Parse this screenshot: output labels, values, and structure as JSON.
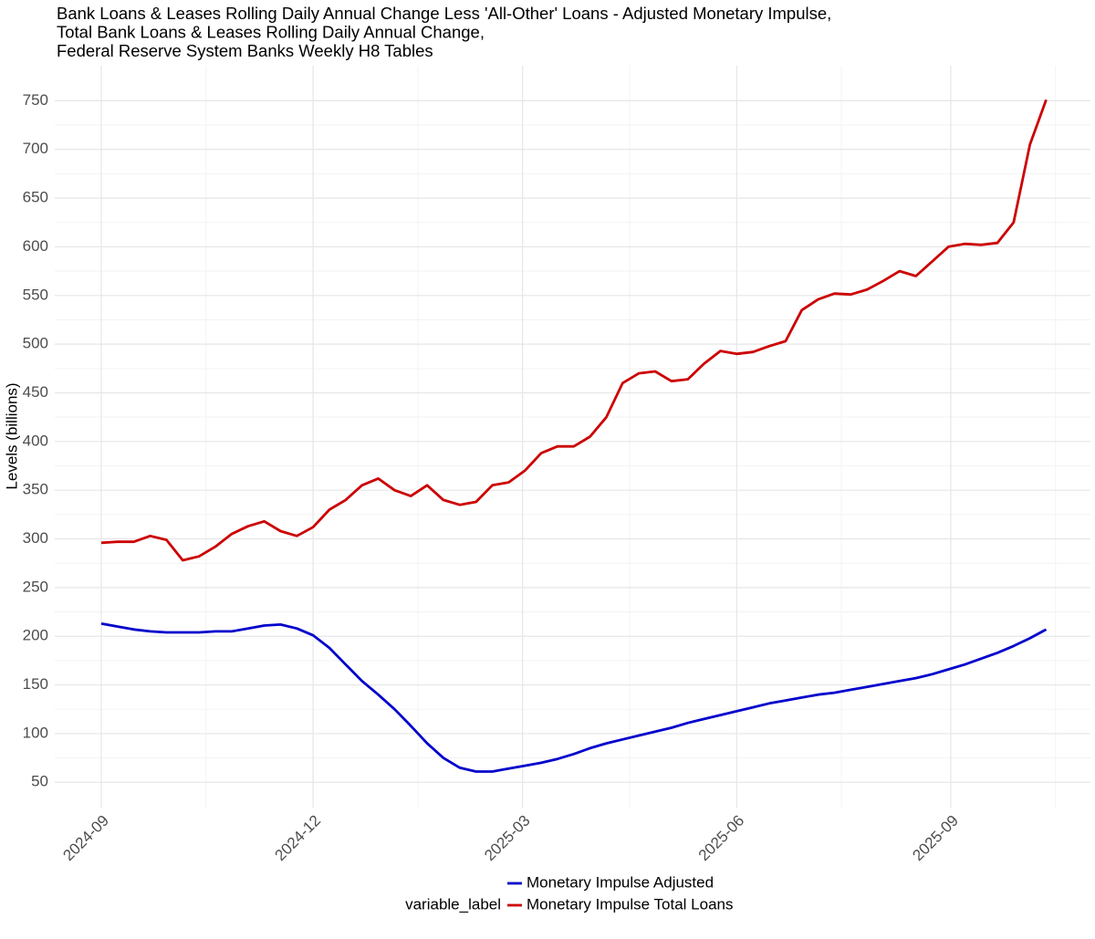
{
  "chart_data": {
    "type": "line",
    "title": [
      "Bank Loans & Leases Rolling Daily Annual Change Less 'All-Other' Loans - Adjusted Monetary Impulse,",
      "Total Bank Loans & Leases Rolling Daily Annual Change,",
      "Federal Reserve System Banks Weekly H8 Tables"
    ],
    "y_label": "Levels (billions)",
    "legend_title": "variable_label",
    "x": [
      "2024-09-01",
      "2024-09-08",
      "2024-09-15",
      "2024-09-22",
      "2024-09-29",
      "2024-10-06",
      "2024-10-13",
      "2024-10-20",
      "2024-10-27",
      "2024-11-03",
      "2024-11-10",
      "2024-11-17",
      "2024-11-24",
      "2024-12-01",
      "2024-12-08",
      "2024-12-15",
      "2024-12-22",
      "2024-12-29",
      "2025-01-05",
      "2025-01-12",
      "2025-01-19",
      "2025-01-26",
      "2025-02-02",
      "2025-02-09",
      "2025-02-16",
      "2025-02-23",
      "2025-03-02",
      "2025-03-09",
      "2025-03-16",
      "2025-03-23",
      "2025-03-30",
      "2025-04-06",
      "2025-04-13",
      "2025-04-20",
      "2025-04-27",
      "2025-05-04",
      "2025-05-11",
      "2025-05-18",
      "2025-05-25",
      "2025-06-01",
      "2025-06-08",
      "2025-06-15",
      "2025-06-22",
      "2025-06-29",
      "2025-07-06",
      "2025-07-13",
      "2025-07-20",
      "2025-07-27",
      "2025-08-03",
      "2025-08-10",
      "2025-08-17",
      "2025-08-24",
      "2025-08-31",
      "2025-09-07",
      "2025-09-14",
      "2025-09-21",
      "2025-09-28",
      "2025-10-05",
      "2025-10-12"
    ],
    "series": [
      {
        "name": "Monetary Impulse Adjusted",
        "color": "#0000cc",
        "values": [
          213,
          210,
          207,
          205,
          204,
          204,
          204,
          205,
          205,
          208,
          211,
          212,
          208,
          201,
          188,
          171,
          154,
          140,
          125,
          108,
          90,
          75,
          65,
          61,
          61,
          64,
          67,
          70,
          74,
          79,
          85,
          90,
          94,
          98,
          102,
          106,
          111,
          115,
          119,
          123,
          127,
          131,
          134,
          137,
          140,
          142,
          145,
          148,
          151,
          154,
          157,
          161,
          166,
          171,
          177,
          183,
          190,
          198,
          207
        ]
      },
      {
        "name": "Monetary Impulse Total Loans",
        "color": "#cc0000",
        "values": [
          296,
          297,
          297,
          303,
          299,
          278,
          282,
          292,
          305,
          313,
          318,
          308,
          303,
          312,
          330,
          340,
          355,
          362,
          350,
          344,
          355,
          340,
          335,
          338,
          355,
          358,
          370,
          388,
          395,
          395,
          405,
          425,
          460,
          470,
          472,
          462,
          464,
          480,
          493,
          490,
          492,
          498,
          503,
          535,
          546,
          552,
          551,
          556,
          565,
          575,
          570,
          585,
          600,
          603,
          602,
          604,
          625,
          705,
          751
        ]
      }
    ],
    "xlim": [
      "2024-08-12",
      "2025-10-31"
    ],
    "xticks": [
      {
        "value": "2024-09-01",
        "label": "2024-09"
      },
      {
        "value": "2024-12-01",
        "label": "2024-12"
      },
      {
        "value": "2025-03-01",
        "label": "2025-03"
      },
      {
        "value": "2025-06-01",
        "label": "2025-06"
      },
      {
        "value": "2025-09-01",
        "label": "2025-09"
      }
    ],
    "xminor": [
      "2024-10-16",
      "2025-01-15",
      "2025-04-16",
      "2025-07-16",
      "2025-10-16"
    ],
    "ylim": [
      24,
      786
    ],
    "yticks": [
      50,
      100,
      150,
      200,
      250,
      300,
      350,
      400,
      450,
      500,
      550,
      600,
      650,
      700,
      750
    ],
    "yminor": [
      75,
      125,
      175,
      225,
      275,
      325,
      375,
      425,
      475,
      525,
      575,
      625,
      675,
      725
    ],
    "grid": true,
    "legend": "bottom"
  }
}
